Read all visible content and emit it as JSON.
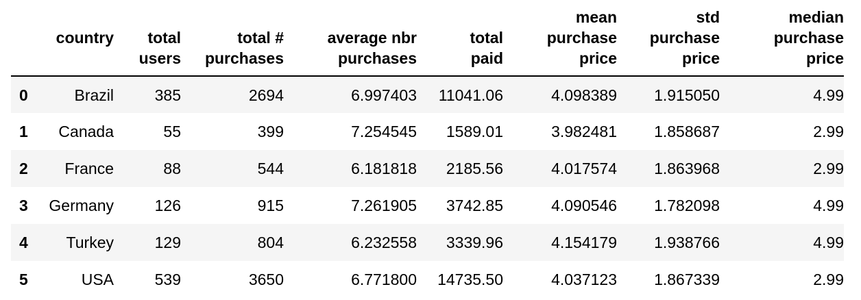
{
  "table": {
    "columns": {
      "country": [
        "country"
      ],
      "total_users": [
        "total",
        "users"
      ],
      "total_purchases": [
        "total #",
        "purchases"
      ],
      "avg_purchases": [
        "average nbr",
        "purchases"
      ],
      "total_paid": [
        "total",
        "paid"
      ],
      "mean_price": [
        "mean",
        "purchase",
        "price"
      ],
      "std_price": [
        "std",
        "purchase",
        "price"
      ],
      "median_price": [
        "median",
        "purchase",
        "price"
      ]
    },
    "rows": [
      {
        "index": "0",
        "country": "Brazil",
        "total_users": "385",
        "total_purchases": "2694",
        "avg_purchases": "6.997403",
        "total_paid": "11041.06",
        "mean_price": "4.098389",
        "std_price": "1.915050",
        "median_price": "4.99"
      },
      {
        "index": "1",
        "country": "Canada",
        "total_users": "55",
        "total_purchases": "399",
        "avg_purchases": "7.254545",
        "total_paid": "1589.01",
        "mean_price": "3.982481",
        "std_price": "1.858687",
        "median_price": "2.99"
      },
      {
        "index": "2",
        "country": "France",
        "total_users": "88",
        "total_purchases": "544",
        "avg_purchases": "6.181818",
        "total_paid": "2185.56",
        "mean_price": "4.017574",
        "std_price": "1.863968",
        "median_price": "2.99"
      },
      {
        "index": "3",
        "country": "Germany",
        "total_users": "126",
        "total_purchases": "915",
        "avg_purchases": "7.261905",
        "total_paid": "3742.85",
        "mean_price": "4.090546",
        "std_price": "1.782098",
        "median_price": "4.99"
      },
      {
        "index": "4",
        "country": "Turkey",
        "total_users": "129",
        "total_purchases": "804",
        "avg_purchases": "6.232558",
        "total_paid": "3339.96",
        "mean_price": "4.154179",
        "std_price": "1.938766",
        "median_price": "4.99"
      },
      {
        "index": "5",
        "country": "USA",
        "total_users": "539",
        "total_purchases": "3650",
        "avg_purchases": "6.771800",
        "total_paid": "14735.50",
        "mean_price": "4.037123",
        "std_price": "1.867339",
        "median_price": "2.99"
      }
    ]
  }
}
